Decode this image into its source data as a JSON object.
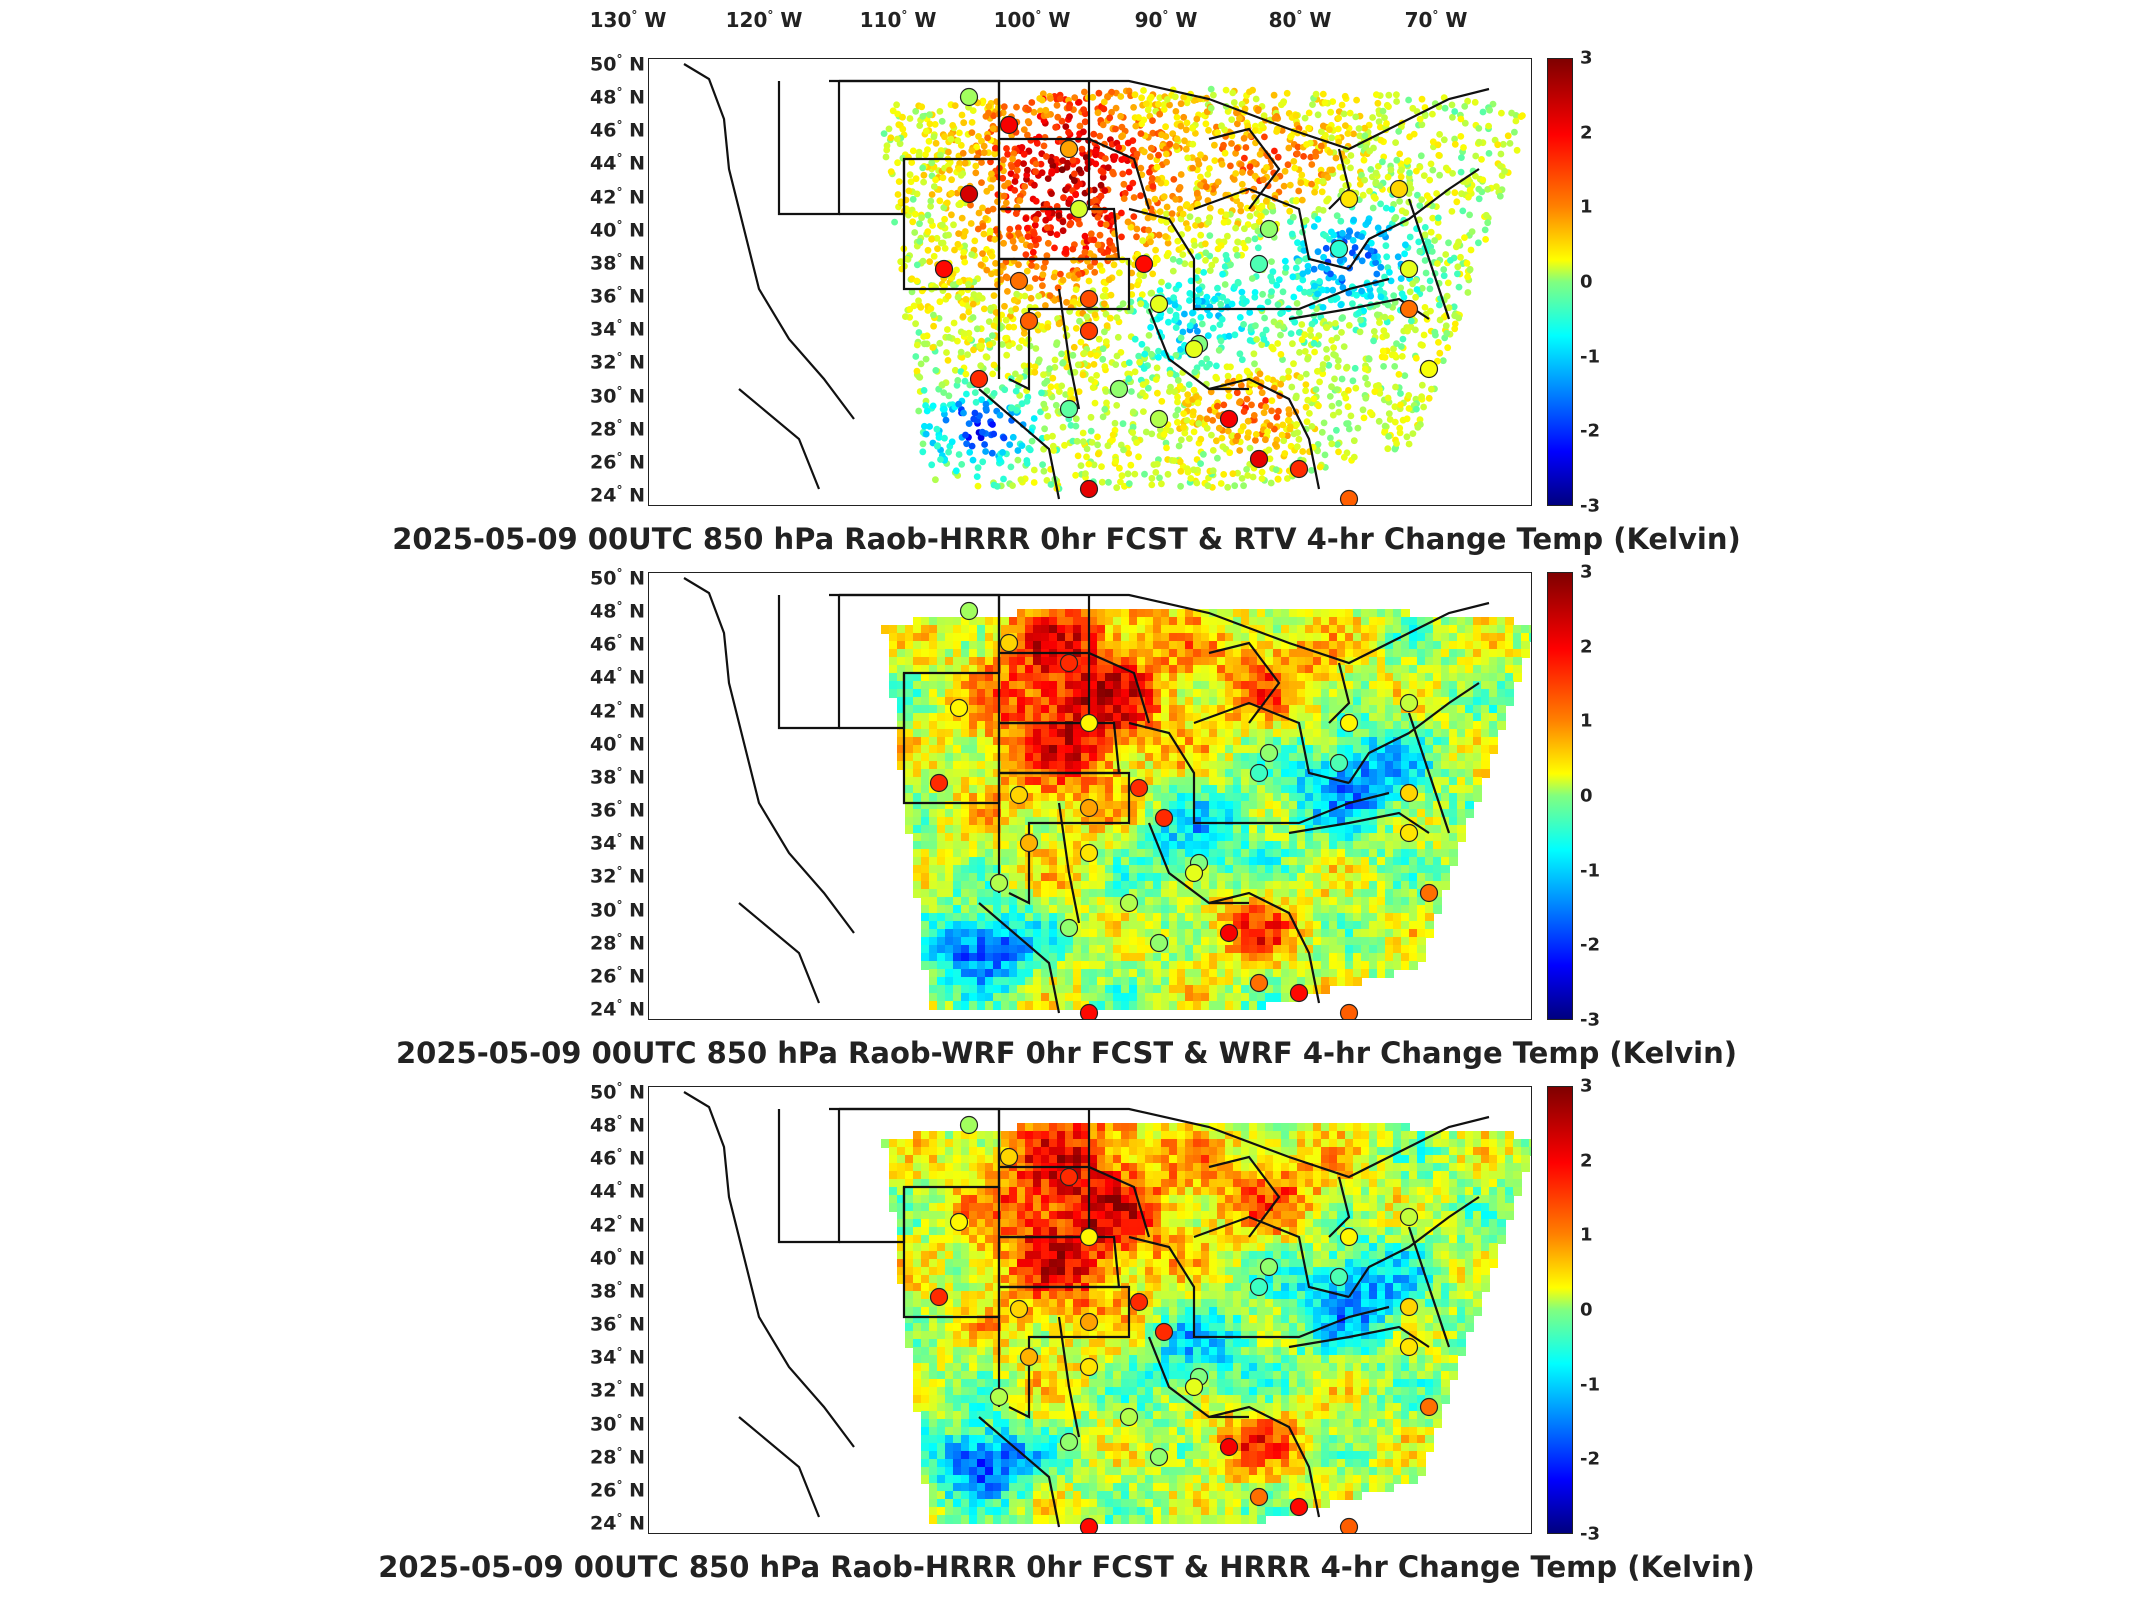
{
  "longitude_labels": [
    {
      "deg": "130",
      "hem": "W"
    },
    {
      "deg": "120",
      "hem": "W"
    },
    {
      "deg": "110",
      "hem": "W"
    },
    {
      "deg": "100",
      "hem": "W"
    },
    {
      "deg": "90",
      "hem": "W"
    },
    {
      "deg": "80",
      "hem": "W"
    },
    {
      "deg": "70",
      "hem": "W"
    }
  ],
  "latitude_labels": [
    {
      "deg": "50",
      "hem": "N"
    },
    {
      "deg": "48",
      "hem": "N"
    },
    {
      "deg": "46",
      "hem": "N"
    },
    {
      "deg": "44",
      "hem": "N"
    },
    {
      "deg": "42",
      "hem": "N"
    },
    {
      "deg": "40",
      "hem": "N"
    },
    {
      "deg": "38",
      "hem": "N"
    },
    {
      "deg": "36",
      "hem": "N"
    },
    {
      "deg": "34",
      "hem": "N"
    },
    {
      "deg": "32",
      "hem": "N"
    },
    {
      "deg": "30",
      "hem": "N"
    },
    {
      "deg": "28",
      "hem": "N"
    },
    {
      "deg": "26",
      "hem": "N"
    },
    {
      "deg": "24",
      "hem": "N"
    }
  ],
  "colorbar": {
    "min": -3,
    "max": 3,
    "ticks": [
      "3",
      "2",
      "1",
      "0",
      "-1",
      "-2",
      "-3"
    ],
    "colormap": "jet"
  },
  "panels": [
    {
      "title": "2025-05-09 00UTC 850 hPa Raob-HRRR 0hr FCST & RTV 4-hr Change Temp (Kelvin)",
      "field": "satellite-scatter"
    },
    {
      "title": "2025-05-09 00UTC 850 hPa Raob-WRF 0hr FCST & WRF 4-hr Change Temp (Kelvin)",
      "field": "model-grid"
    },
    {
      "title": "2025-05-09 00UTC 850 hPa Raob-HRRR 0hr FCST & HRRR 4-hr Change Temp (Kelvin)",
      "field": "model-grid"
    }
  ],
  "colors": {
    "warm": "#ff3a00",
    "hot": "#b80000",
    "mild": "#ffcc00",
    "neutral": "#7fff7f",
    "cool": "#00b8ff",
    "cold": "#0000c8"
  }
}
